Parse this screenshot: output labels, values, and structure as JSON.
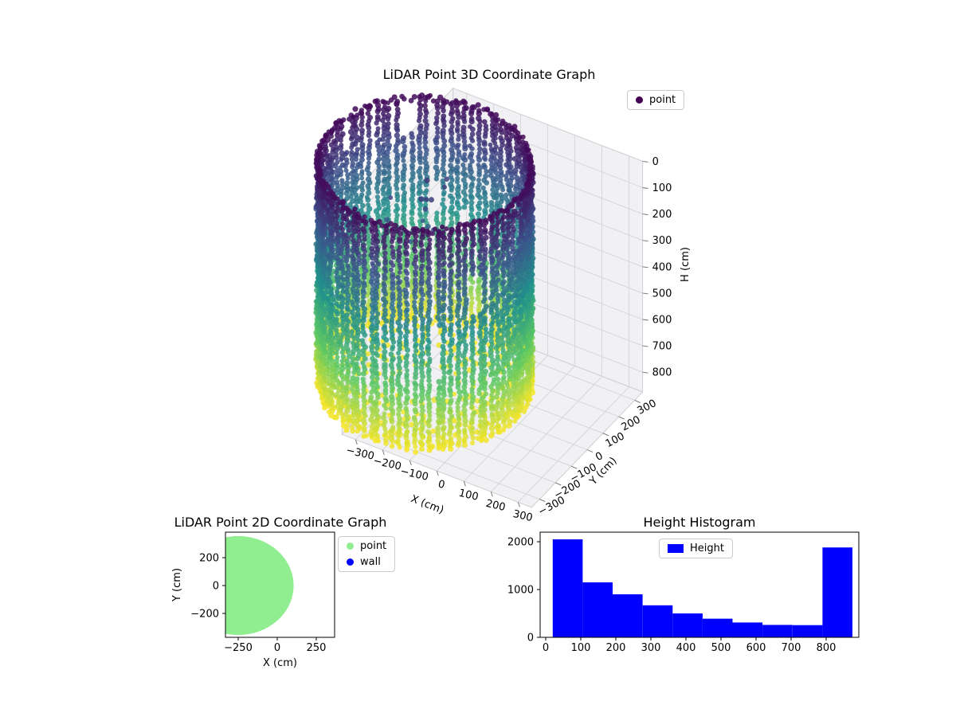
{
  "figure": {
    "background": "#ffffff"
  },
  "chart_data": [
    {
      "id": "lidar-3d",
      "type": "scatter",
      "projection": "3d",
      "title": "LiDAR Point 3D Coordinate Graph",
      "xlabel": "X (cm)",
      "ylabel": "Y (cm)",
      "zlabel": "H (cm)",
      "xticks": [
        -300,
        -200,
        -100,
        0,
        100,
        200,
        300
      ],
      "yticks": [
        -300,
        -200,
        -100,
        0,
        100,
        200,
        300
      ],
      "zticks": [
        0,
        100,
        200,
        300,
        400,
        500,
        600,
        700,
        800
      ],
      "xlim": [
        -350,
        350
      ],
      "ylim": [
        -350,
        350
      ],
      "zlim": [
        0,
        875
      ],
      "zaxis_inverted": true,
      "legend": [
        {
          "label": "point",
          "marker_color": "#440154"
        }
      ],
      "colormap": "viridis",
      "colormap_stops": [
        [
          0,
          "#440154"
        ],
        [
          0.25,
          "#3b528b"
        ],
        [
          0.5,
          "#21918c"
        ],
        [
          0.75,
          "#5ec962"
        ],
        [
          1,
          "#fde725"
        ]
      ],
      "point_cloud": {
        "shape": "cylindrical wall scan colored by height",
        "center": {
          "x": -250,
          "y": 0
        },
        "radius": 340,
        "height_range": [
          25,
          868
        ],
        "columns": 88,
        "floor_height": 860,
        "color_by": "height"
      }
    },
    {
      "id": "lidar-2d",
      "type": "scatter",
      "title": "LiDAR Point 2D Coordinate Graph",
      "xlabel": "X (cm)",
      "ylabel": "Y (cm)",
      "xticks": [
        -250,
        0,
        250
      ],
      "yticks": [
        200,
        0,
        -200
      ],
      "xlim": [
        -335,
        370
      ],
      "ylim": [
        -375,
        385
      ],
      "legend": [
        {
          "label": "point",
          "marker_color": "#90ee90"
        },
        {
          "label": "wall",
          "marker_color": "#0000ff"
        }
      ],
      "region": {
        "shape": "disc",
        "center": {
          "x": -250,
          "y": 0
        },
        "radius": 355,
        "color": "#90ee90"
      }
    },
    {
      "id": "height-histogram",
      "type": "bar",
      "title": "Height Histogram",
      "legend": [
        {
          "label": "Height",
          "marker_color": "#0000ff"
        }
      ],
      "bar_color": "#0000ff",
      "bin_edges": [
        20,
        105.5,
        191,
        276.5,
        362,
        447.5,
        533,
        618.5,
        704,
        789.5,
        875
      ],
      "values": [
        2050,
        1150,
        900,
        670,
        500,
        390,
        310,
        260,
        255,
        1880
      ],
      "xticks": [
        0,
        100,
        200,
        300,
        400,
        500,
        600,
        700,
        800
      ],
      "yticks": [
        0,
        1000,
        2000
      ],
      "xlim": [
        -16,
        893
      ],
      "ylim": [
        0,
        2200
      ]
    }
  ]
}
